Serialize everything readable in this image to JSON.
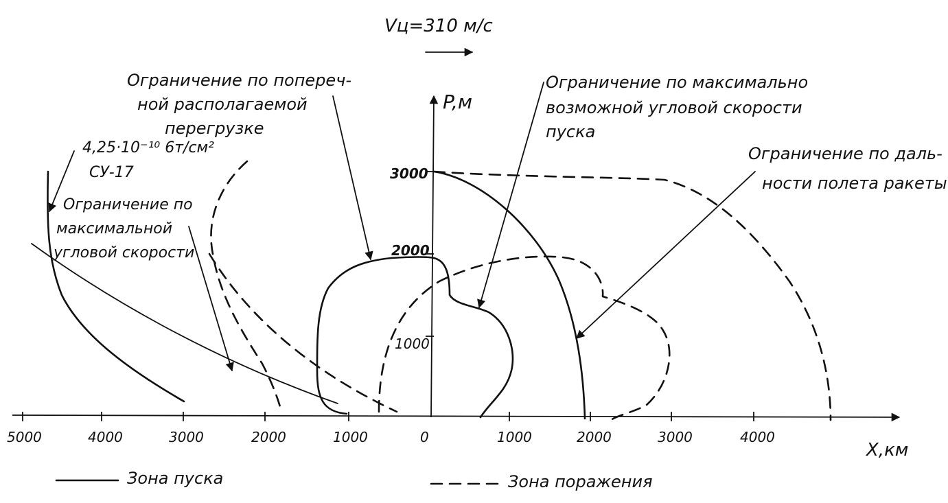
{
  "header": {
    "speed_label": "Vц=310 м/с"
  },
  "annotations": {
    "lateral_limit": [
      "Ограничение по попереч-",
      "ной располагаемой",
      "перегрузке"
    ],
    "max_angular_speed_launch": [
      "Ограничение по максимально",
      "возможной угловой скорости",
      "пуска"
    ],
    "range_limit": [
      "Ограничение по даль-",
      "ности полета ракеты"
    ],
    "target_params": [
      "4,25·10⁻¹⁰ 6т/см²",
      "СУ-17"
    ],
    "max_angular_speed": [
      "Ограничение по",
      "максимальной",
      "угловой скорости"
    ]
  },
  "axes": {
    "x_label": "X,км",
    "y_label": "P,м",
    "x_ticks": [
      "5000",
      "4000",
      "3000",
      "2000",
      "1000",
      "0",
      "1000",
      "2000",
      "3000",
      "4000"
    ],
    "y_ticks": [
      "3000",
      "2000",
      "1000"
    ]
  },
  "legend": {
    "solid_label": "Зона пуска",
    "dashed_label": "Зона поражения"
  },
  "colors": {
    "ink": "#111111",
    "paper": "#ffffff"
  }
}
